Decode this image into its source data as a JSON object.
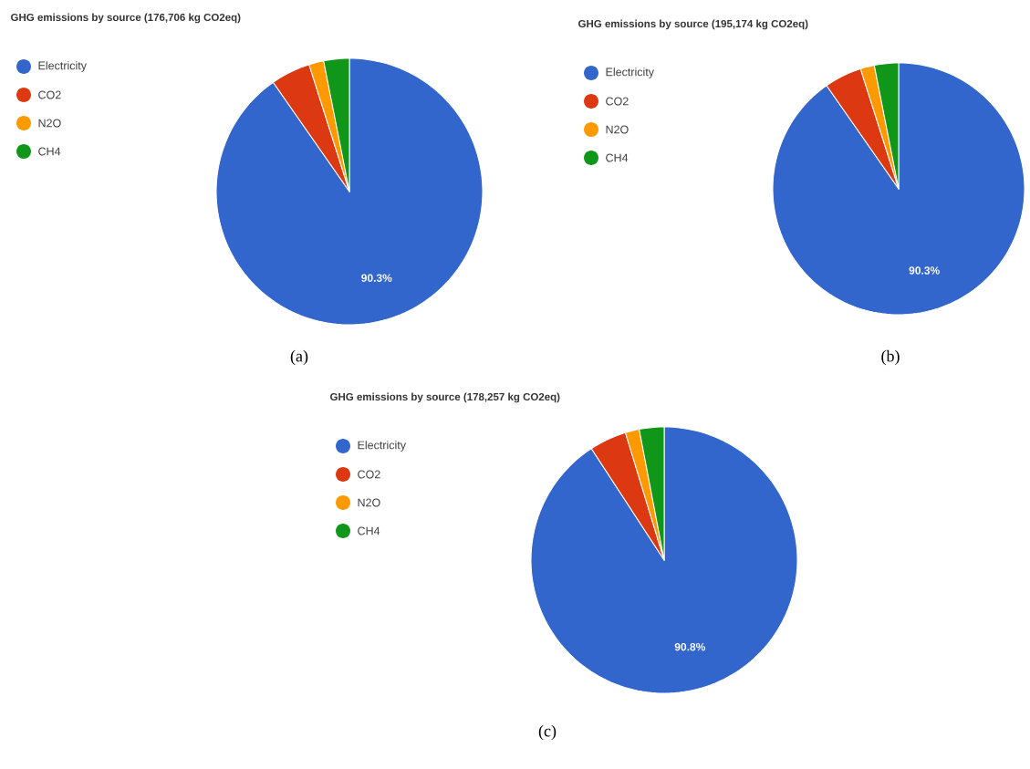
{
  "chart_data": [
    {
      "type": "pie",
      "title": "GHG emissions by source (176,706 kg CO2eq)",
      "categories": [
        "Electricity",
        "CO2",
        "N2O",
        "CH4"
      ],
      "values": [
        90.3,
        4.8,
        1.8,
        3.1
      ],
      "colors": [
        "#3366cc",
        "#dc3912",
        "#ff9900",
        "#109618"
      ],
      "value_labels": [
        "90.3%",
        null,
        null,
        null
      ],
      "legend": "top left",
      "annotations": [
        "(a)"
      ]
    },
    {
      "type": "pie",
      "title": "GHG emissions by source (195,174 kg CO2eq)",
      "categories": [
        "Electricity",
        "CO2",
        "N2O",
        "CH4"
      ],
      "values": [
        90.3,
        4.8,
        1.8,
        3.1
      ],
      "colors": [
        "#3366cc",
        "#dc3912",
        "#ff9900",
        "#109618"
      ],
      "value_labels": [
        "90.3%",
        null,
        null,
        null
      ],
      "legend": "top left",
      "annotations": [
        "(b)"
      ]
    },
    {
      "type": "pie",
      "title": "GHG emissions by source (178,257 kg CO2eq)",
      "categories": [
        "Electricity",
        "CO2",
        "N2O",
        "CH4"
      ],
      "values": [
        90.8,
        4.5,
        1.7,
        3.0
      ],
      "colors": [
        "#3366cc",
        "#dc3912",
        "#ff9900",
        "#109618"
      ],
      "value_labels": [
        "90.8%",
        null,
        null,
        null
      ],
      "legend": "top left",
      "annotations": [
        "(c)"
      ]
    }
  ]
}
